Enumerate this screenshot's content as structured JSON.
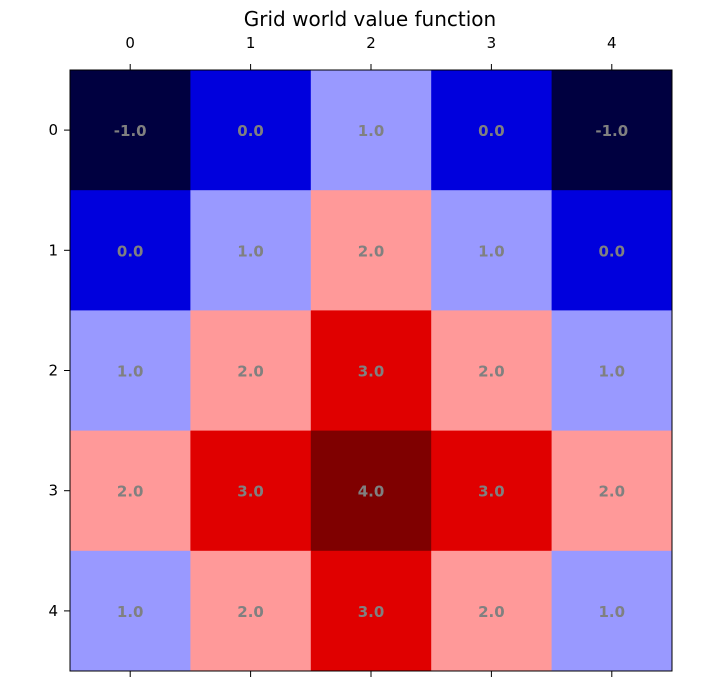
{
  "chart_data": {
    "type": "heatmap",
    "title": "Grid world value function",
    "x_ticks": [
      "0",
      "1",
      "2",
      "3",
      "4"
    ],
    "y_ticks": [
      "0",
      "1",
      "2",
      "3",
      "4"
    ],
    "x_axis_position": "top",
    "grid": false,
    "legend": "none",
    "value_range": [
      -1,
      4
    ],
    "values": [
      [
        -1.0,
        0.0,
        1.0,
        0.0,
        -1.0
      ],
      [
        0.0,
        1.0,
        2.0,
        1.0,
        0.0
      ],
      [
        1.0,
        2.0,
        3.0,
        2.0,
        1.0
      ],
      [
        2.0,
        3.0,
        4.0,
        3.0,
        2.0
      ],
      [
        1.0,
        2.0,
        3.0,
        2.0,
        1.0
      ]
    ],
    "labels": [
      [
        "-1.0",
        "0.0",
        "1.0",
        "0.0",
        "-1.0"
      ],
      [
        "0.0",
        "1.0",
        "2.0",
        "1.0",
        "0.0"
      ],
      [
        "1.0",
        "2.0",
        "3.0",
        "2.0",
        "1.0"
      ],
      [
        "2.0",
        "3.0",
        "4.0",
        "3.0",
        "2.0"
      ],
      [
        "1.0",
        "2.0",
        "3.0",
        "2.0",
        "1.0"
      ]
    ],
    "colormap": {
      "-1": "#000040",
      "0": "#0000dd",
      "1": "#9999ff",
      "2": "#ff9999",
      "3": "#e00000",
      "4": "#7f0000"
    },
    "cell_text_color": "#808080"
  }
}
